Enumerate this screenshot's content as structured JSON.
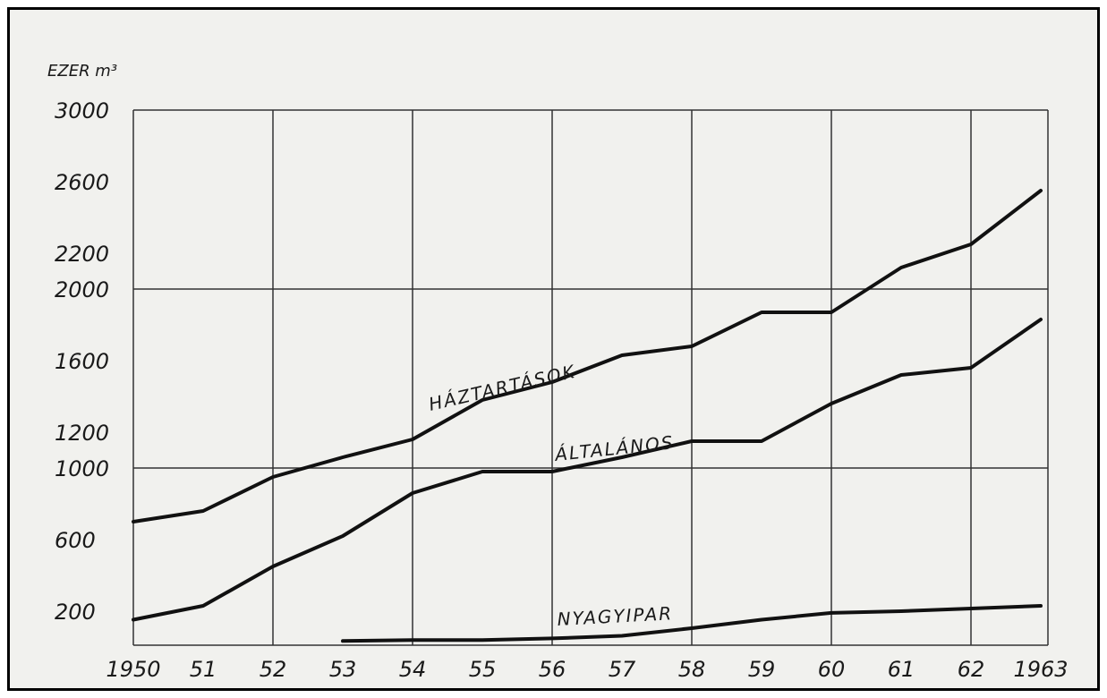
{
  "chart_data": {
    "type": "line",
    "ylabel": "EZER m³",
    "x": [
      "1950",
      "51",
      "52",
      "53",
      "54",
      "55",
      "56",
      "57",
      "58",
      "59",
      "60",
      "61",
      "62",
      "1963"
    ],
    "y_ticks": [
      "3000",
      "2600",
      "2200",
      "2000",
      "1600",
      "1200",
      "1000",
      "600",
      "200"
    ],
    "y_tick_values": [
      3000,
      2600,
      2200,
      2000,
      1600,
      1200,
      1000,
      600,
      200
    ],
    "ylim": [
      0,
      3000
    ],
    "grid": true,
    "series": [
      {
        "name": "HÁZTARTÁSOK",
        "values": [
          700,
          760,
          950,
          1060,
          1160,
          1380,
          1480,
          1630,
          1680,
          1870,
          1870,
          2120,
          2250,
          2550
        ]
      },
      {
        "name": "ÁLTALÁNOS",
        "values": [
          150,
          230,
          450,
          620,
          860,
          980,
          980,
          1060,
          1150,
          1150,
          1360,
          1520,
          1560,
          1830
        ]
      },
      {
        "name": "NYAGYIPAR",
        "values": [
          null,
          null,
          null,
          25,
          30,
          30,
          40,
          55,
          100,
          150,
          190,
          200,
          215,
          230
        ]
      }
    ]
  }
}
